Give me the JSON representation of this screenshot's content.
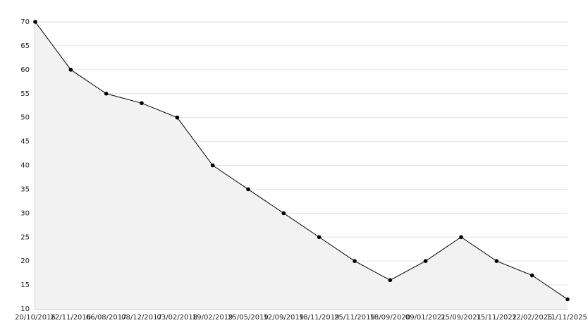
{
  "chart_data": {
    "type": "area",
    "categories": [
      "20/10/2016",
      "22/11/2016",
      "06/08/2017",
      "08/12/2017",
      "03/02/2018",
      "19/02/2019",
      "25/05/2019",
      "12/09/2019",
      "18/11/2019",
      "25/11/2019",
      "18/09/2020",
      "09/01/2021",
      "25/09/2021",
      "15/11/2022",
      "12/02/2025",
      "11/11/2025"
    ],
    "series": [
      {
        "color": "#000000",
        "fill": "#f2f2f2",
        "values": [
          70,
          60,
          55,
          53,
          50,
          40,
          35,
          30,
          25,
          20,
          16,
          20,
          25,
          20,
          17,
          12
        ]
      }
    ],
    "ylim": [
      10,
      70
    ],
    "yticks": [
      10,
      15,
      20,
      25,
      30,
      35,
      40,
      45,
      50,
      55,
      60,
      65,
      70
    ],
    "grid": true
  }
}
